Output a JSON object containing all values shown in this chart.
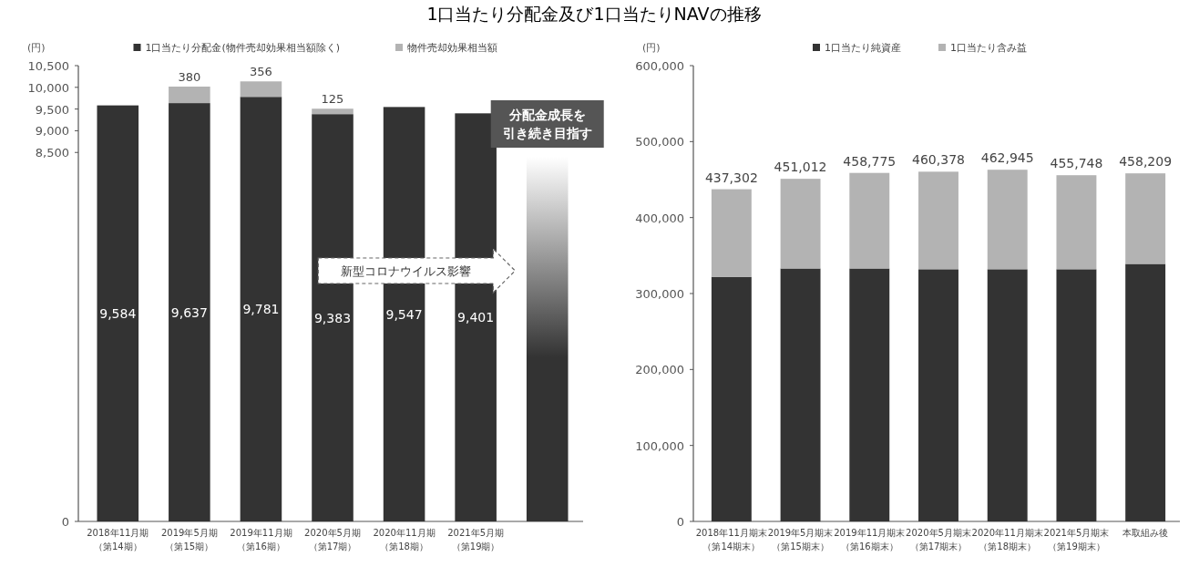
{
  "chart_data": [
    {
      "type": "bar",
      "title": "1口当たり分配金及び1口当たりNAVの推移",
      "ylabel": "(円)",
      "stacked": true,
      "legend": "top",
      "categories": [
        "2018年11月期（第14期）",
        "2019年5月期（第15期）",
        "2019年11月期（第16期）",
        "2020年5月期（第17期）",
        "2020年11月期（第18期）",
        "2021年5月期（第19期）",
        null
      ],
      "series": [
        {
          "name": "1口当たり分配金(物件売却効果相当額除く)",
          "color": "#333333",
          "values": [
            9584,
            9637,
            9781,
            9383,
            9547,
            9401,
            null
          ],
          "value_labels": [
            "9,584",
            "9,637",
            "9,781",
            "9,383",
            "9,547",
            "9,401",
            null
          ]
        },
        {
          "name": "物件売却効果相当額",
          "color": "#b3b3b3",
          "values": [
            null,
            380,
            356,
            125,
            null,
            null,
            null
          ],
          "value_labels": [
            null,
            "380",
            "356",
            "125",
            null,
            null,
            null
          ]
        }
      ],
      "ylim": [
        0,
        10500
      ],
      "yticks": [
        0,
        {
          "value": 8500,
          "label": "8,500"
        },
        {
          "value": 9000,
          "label": "9,000"
        },
        {
          "value": 9500,
          "label": "9,500"
        },
        {
          "value": 10000,
          "label": "10,000"
        },
        {
          "value": 10500,
          "label": "10,500"
        }
      ],
      "annotations": [
        "新型コロナウイルス影響",
        "分配金成長を引き続き目指す"
      ]
    },
    {
      "type": "bar",
      "ylabel": "(円)",
      "stacked": true,
      "legend": "top",
      "categories": [
        "2018年11月期末（第14期末）",
        "2019年5月期末（第15期末）",
        "2019年11月期末（第16期末）",
        "2020年5月期末（第17期末）",
        "2020年11月期末（第18期末）",
        "2021年5月期末（第19期末）",
        "本取組み後"
      ],
      "series": [
        {
          "name": "1口当たり純資産",
          "color": "#333333",
          "values": [
            322000,
            333000,
            333000,
            332000,
            332000,
            332000,
            339000
          ]
        },
        {
          "name": "1口当たり含み益",
          "color": "#b3b3b3",
          "values": [
            115302,
            118012,
            125775,
            128378,
            130945,
            123748,
            119209
          ]
        }
      ],
      "totals": [
        "437,302",
        "451,012",
        "458,775",
        "460,378",
        "462,945",
        "455,748",
        "458,209"
      ],
      "ylim": [
        0,
        600000
      ],
      "yticks": [
        0,
        {
          "value": 100000,
          "label": "100,000"
        },
        {
          "value": 200000,
          "label": "200,000"
        },
        {
          "value": 300000,
          "label": "300,000"
        },
        {
          "value": 400000,
          "label": "400,000"
        },
        {
          "value": 500000,
          "label": "500,000"
        },
        {
          "value": 600000,
          "label": "600,000"
        }
      ]
    }
  ]
}
